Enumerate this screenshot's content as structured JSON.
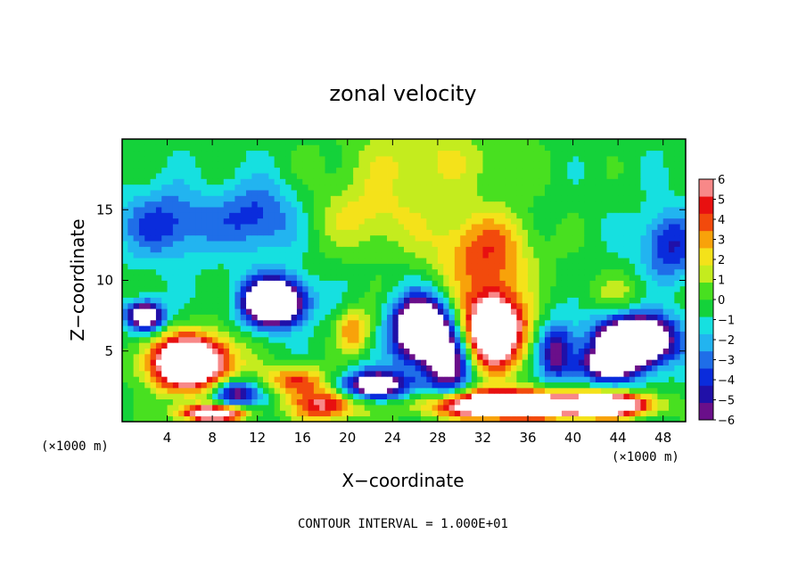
{
  "chart_data": {
    "type": "heatmap",
    "title": "zonal velocity",
    "xlabel": "X−coordinate",
    "ylabel": "Z−coordinate",
    "x_unit_left": "(×1000 m)",
    "x_unit_right": "(×1000 m)",
    "xlim": [
      0,
      50
    ],
    "ylim": [
      0,
      20
    ],
    "x_ticks": [
      {
        "value": 4,
        "label": "4"
      },
      {
        "value": 8,
        "label": "8"
      },
      {
        "value": 12,
        "label": "12"
      },
      {
        "value": 16,
        "label": "16"
      },
      {
        "value": 20,
        "label": "20"
      },
      {
        "value": 24,
        "label": "24"
      },
      {
        "value": 28,
        "label": "28"
      },
      {
        "value": 32,
        "label": "32"
      },
      {
        "value": 36,
        "label": "36"
      },
      {
        "value": 40,
        "label": "40"
      },
      {
        "value": 44,
        "label": "44"
      },
      {
        "value": 48,
        "label": "48"
      }
    ],
    "y_ticks": [
      {
        "value": 5,
        "label": "5"
      },
      {
        "value": 10,
        "label": "10"
      },
      {
        "value": 15,
        "label": "15"
      }
    ],
    "colorbar": {
      "range": [
        -6,
        6
      ],
      "labels": [
        {
          "value": 6,
          "label": "6"
        },
        {
          "value": 5,
          "label": "5"
        },
        {
          "value": 4,
          "label": "4"
        },
        {
          "value": 3,
          "label": "3"
        },
        {
          "value": 2,
          "label": "2"
        },
        {
          "value": 1,
          "label": "1"
        },
        {
          "value": 0,
          "label": "0"
        },
        {
          "value": -1,
          "label": "−1"
        },
        {
          "value": -2,
          "label": "−2"
        },
        {
          "value": -3,
          "label": "−3"
        },
        {
          "value": -4,
          "label": "−4"
        },
        {
          "value": -5,
          "label": "−5"
        },
        {
          "value": -6,
          "label": "−6"
        }
      ],
      "colors": [
        "#6a0f8a",
        "#2010a8",
        "#0a2cdc",
        "#1f6ee8",
        "#22b4f0",
        "#16e0e0",
        "#14d23a",
        "#48e020",
        "#c4ec1e",
        "#f4e21a",
        "#f8a20a",
        "#f24a0c",
        "#e81010",
        "#f88888"
      ]
    },
    "saturated_color": "#ffffff",
    "features": [
      {
        "x": 13.5,
        "z": 8.5,
        "sx": 2.6,
        "sz": 1.6,
        "v": -12
      },
      {
        "x": 26.5,
        "z": 6.5,
        "sx": 2.3,
        "sz": 2.2,
        "v": -12
      },
      {
        "x": 45.5,
        "z": 5.8,
        "sx": 3.4,
        "sz": 1.7,
        "v": -12
      },
      {
        "x": 2.0,
        "z": 7.5,
        "sx": 1.6,
        "sz": 1.0,
        "v": -9
      },
      {
        "x": 29.0,
        "z": 4.0,
        "sx": 2.0,
        "sz": 2.5,
        "v": -6
      },
      {
        "x": 43.0,
        "z": 4.0,
        "sx": 3.0,
        "sz": 1.2,
        "v": -6
      },
      {
        "x": 33.0,
        "z": 6.5,
        "sx": 2.6,
        "sz": 2.6,
        "v": 12
      },
      {
        "x": 6.0,
        "z": 4.2,
        "sx": 3.6,
        "sz": 1.9,
        "v": 12
      },
      {
        "x": 34.0,
        "z": 1.2,
        "sx": 6.5,
        "sz": 1.0,
        "v": 12
      },
      {
        "x": 8.0,
        "z": 0.6,
        "sx": 3.0,
        "sz": 0.6,
        "v": 9
      },
      {
        "x": 18.0,
        "z": 1.2,
        "sx": 3.0,
        "sz": 1.1,
        "v": 6
      },
      {
        "x": 43.0,
        "z": 1.2,
        "sx": 4.0,
        "sz": 0.8,
        "v": 10
      },
      {
        "x": 20.5,
        "z": 6.5,
        "sx": 1.5,
        "sz": 1.5,
        "v": 4
      },
      {
        "x": 32.0,
        "z": 12.0,
        "sx": 4.5,
        "sz": 3.0,
        "v": 4.5
      },
      {
        "x": 27.0,
        "z": 18.5,
        "sx": 8.0,
        "sz": 2.5,
        "v": 2.2
      },
      {
        "x": 22.0,
        "z": 14.5,
        "sx": 5.0,
        "sz": 2.5,
        "v": 2.5
      },
      {
        "x": 4.0,
        "z": 14.0,
        "sx": 4.0,
        "sz": 2.5,
        "v": -3.5
      },
      {
        "x": 12.0,
        "z": 14.5,
        "sx": 3.5,
        "sz": 2.5,
        "v": -3.5
      },
      {
        "x": 48.5,
        "z": 12.5,
        "sx": 2.5,
        "sz": 2.5,
        "v": -4
      },
      {
        "x": 44.0,
        "z": 9.0,
        "sx": 3.0,
        "sz": 1.5,
        "v": 1.5
      },
      {
        "x": 22.5,
        "z": 2.6,
        "sx": 3.0,
        "sz": 1.0,
        "v": -8
      },
      {
        "x": 10.0,
        "z": 2.0,
        "sx": 2.0,
        "sz": 1.0,
        "v": -6
      },
      {
        "x": 38.5,
        "z": 5.0,
        "sx": 1.5,
        "sz": 2.0,
        "v": -5
      },
      {
        "x": 15.5,
        "z": 3.0,
        "sx": 2.5,
        "sz": 1.0,
        "v": 5
      }
    ]
  },
  "footer": {
    "contour_interval": "CONTOUR INTERVAL = 1.000E+01"
  }
}
